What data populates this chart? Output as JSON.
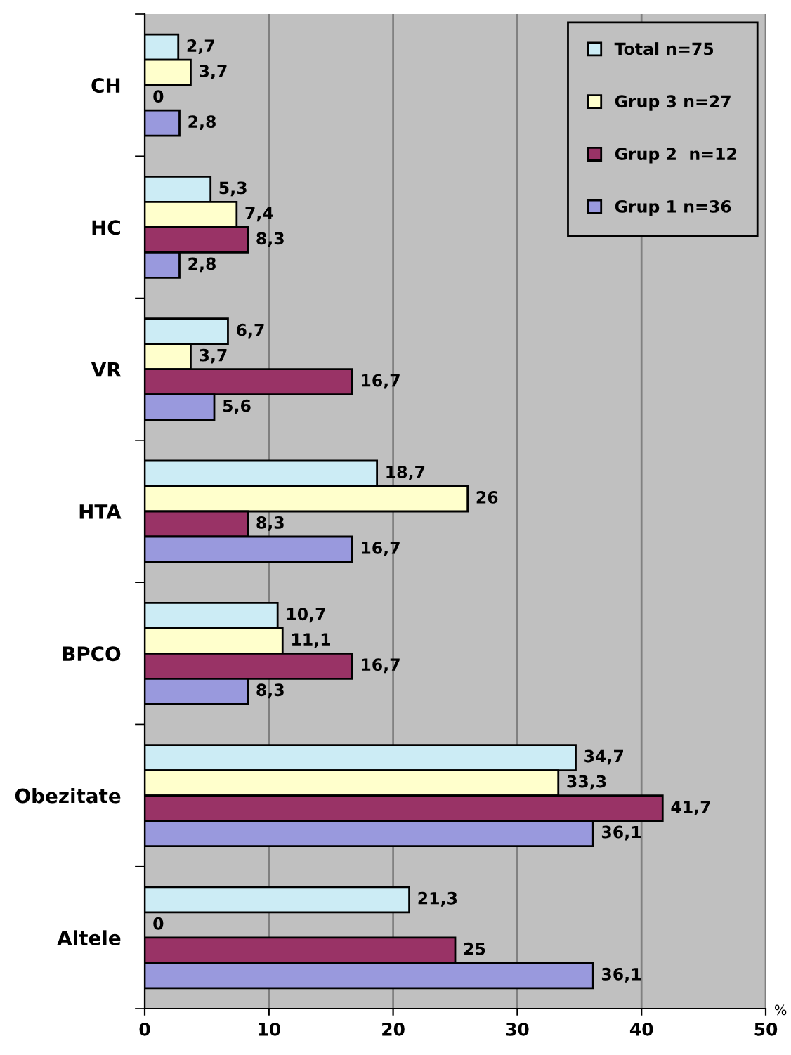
{
  "chart_data": {
    "type": "bar",
    "orientation": "horizontal",
    "categories": [
      "CH",
      "HC",
      "VR",
      "HTA",
      "BPCO",
      "Obezitate",
      "Altele"
    ],
    "series": [
      {
        "name": "Total n=75",
        "color": "#ccecf5",
        "values": [
          2.7,
          5.3,
          6.7,
          18.7,
          10.7,
          34.7,
          21.3
        ],
        "value_labels": [
          "2,7",
          "5,3",
          "6,7",
          "18,7",
          "10,7",
          "34,7",
          "21,3"
        ]
      },
      {
        "name": "Grup 3 n=27",
        "color": "#ffffcc",
        "values": [
          3.7,
          7.4,
          3.7,
          26,
          11.1,
          33.3,
          0
        ],
        "value_labels": [
          "3,7",
          "7,4",
          "3,7",
          "26",
          "11,1",
          "33,3",
          "0"
        ]
      },
      {
        "name": "Grup 2  n=12",
        "color": "#993366",
        "values": [
          0,
          8.3,
          16.7,
          8.3,
          16.7,
          41.7,
          25
        ],
        "value_labels": [
          "0",
          "8,3",
          "16,7",
          "8,3",
          "16,7",
          "41,7",
          "25"
        ]
      },
      {
        "name": "Grup 1 n=36",
        "color": "#9999dd",
        "values": [
          2.8,
          2.8,
          5.6,
          16.7,
          8.3,
          36.1,
          36.1
        ],
        "value_labels": [
          "2,8",
          "2,8",
          "5,6",
          "16,7",
          "8,3",
          "36,1",
          "36,1"
        ]
      }
    ],
    "xlim": [
      0,
      50
    ],
    "xticks": [
      0,
      10,
      20,
      30,
      40,
      50
    ],
    "grid": "x",
    "legend": "top right",
    "annotations": [
      "%"
    ]
  }
}
